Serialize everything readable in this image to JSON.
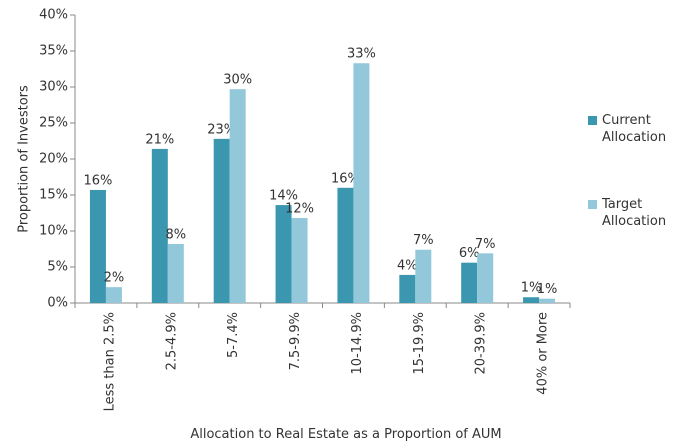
{
  "chart_data": {
    "type": "bar",
    "x_label": "Allocation to Real Estate as a Proportion of AUM",
    "y_label": "Proportion of Investors",
    "categories": [
      "Less than 2.5%",
      "2.5-4.9%",
      "5-7.4%",
      "7.5-9.9%",
      "10-14.9%",
      "15-19.9%",
      "20-39.9%",
      "40% or More"
    ],
    "series": [
      {
        "name": "Current Allocation",
        "color": "#3b97b0",
        "values": [
          15.7,
          21.4,
          22.8,
          13.6,
          16.0,
          3.9,
          5.6,
          0.8
        ],
        "value_labels": [
          "16%",
          "21%",
          "23%",
          "14%",
          "16%",
          "4%",
          "6%",
          "1%"
        ]
      },
      {
        "name": "Target Allocation",
        "color": "#93c8da",
        "values": [
          2.2,
          8.2,
          29.7,
          11.8,
          33.3,
          7.4,
          6.9,
          0.6
        ],
        "value_labels": [
          "2%",
          "8%",
          "30%",
          "12%",
          "33%",
          "7%",
          "7%",
          "1%"
        ]
      }
    ],
    "ylim": [
      0,
      40
    ],
    "yticks": [
      {
        "value": 0,
        "label": "0%"
      },
      {
        "value": 5,
        "label": "5%"
      },
      {
        "value": 10,
        "label": "10%"
      },
      {
        "value": 15,
        "label": "15%"
      },
      {
        "value": 20,
        "label": "20%"
      },
      {
        "value": 25,
        "label": "25%"
      },
      {
        "value": 30,
        "label": "30%"
      },
      {
        "value": 35,
        "label": "35%"
      },
      {
        "value": 40,
        "label": "40%"
      }
    ],
    "legend": "right"
  }
}
